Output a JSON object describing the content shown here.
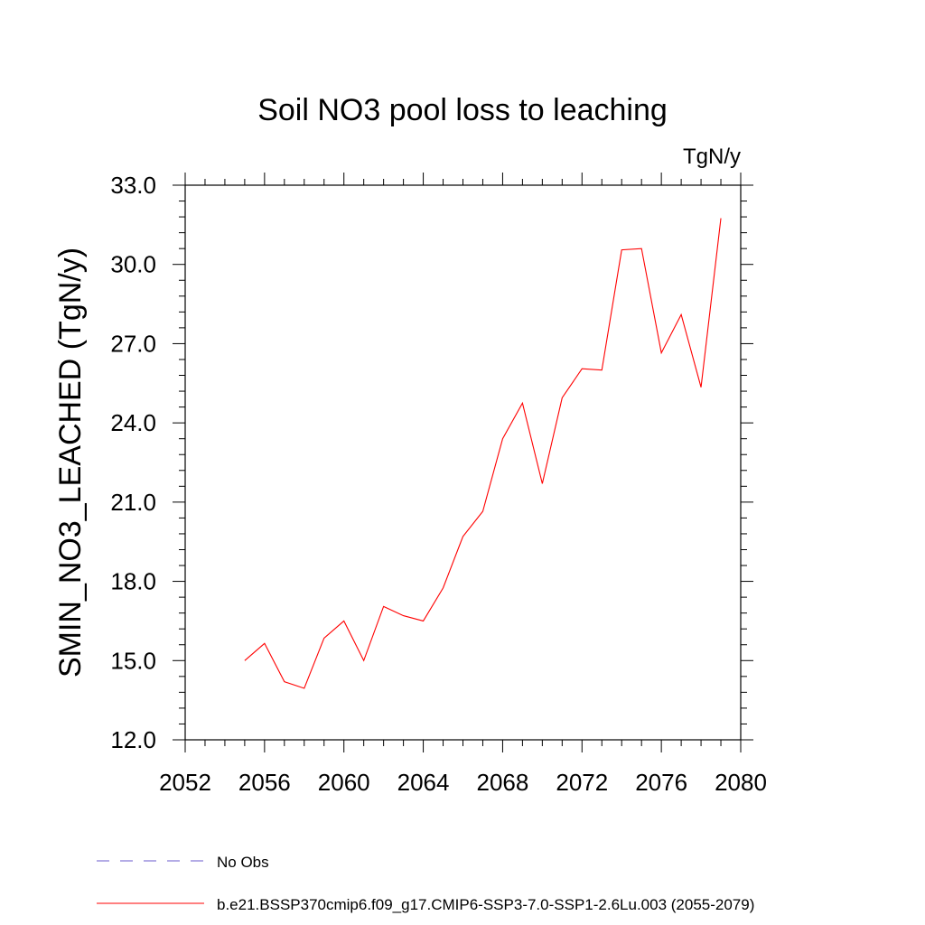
{
  "chart_data": {
    "type": "line",
    "title": "Soil NO3 pool loss to leaching",
    "units": "TgN/y",
    "ylabel": "SMIN_NO3_LEACHED  (TgN/y)",
    "xlabel": "",
    "xlim": [
      2052,
      2080
    ],
    "ylim": [
      12.0,
      33.0
    ],
    "x_ticks": [
      2052,
      2056,
      2060,
      2064,
      2068,
      2072,
      2076,
      2080
    ],
    "x_tick_labels": [
      "2052",
      "2056",
      "2060",
      "2064",
      "2068",
      "2072",
      "2076",
      "2080"
    ],
    "y_ticks": [
      12.0,
      15.0,
      18.0,
      21.0,
      24.0,
      27.0,
      30.0,
      33.0
    ],
    "y_tick_labels": [
      "12.0",
      "15.0",
      "18.0",
      "21.0",
      "24.0",
      "27.0",
      "30.0",
      "33.0"
    ],
    "grid": false,
    "series": [
      {
        "name": "No Obs",
        "color": "#6a5acd",
        "dash": true,
        "x": [],
        "y": []
      },
      {
        "name": "b.e21.BSSP370cmip6.f09_g17.CMIP6-SSP3-7.0-SSP1-2.6Lu.003 (2055-2079)",
        "color": "#ff0000",
        "dash": false,
        "x": [
          2055,
          2056,
          2057,
          2058,
          2059,
          2060,
          2061,
          2062,
          2063,
          2064,
          2065,
          2066,
          2067,
          2068,
          2069,
          2070,
          2071,
          2072,
          2073,
          2074,
          2075,
          2076,
          2077,
          2078,
          2079
        ],
        "y": [
          15.0,
          15.65,
          14.2,
          13.95,
          15.85,
          16.5,
          15.0,
          17.05,
          16.7,
          16.5,
          17.75,
          19.7,
          20.65,
          23.4,
          24.75,
          21.7,
          24.95,
          26.05,
          26.0,
          30.55,
          30.6,
          26.65,
          28.1,
          25.35,
          31.75
        ]
      }
    ],
    "legend": "bottom"
  }
}
